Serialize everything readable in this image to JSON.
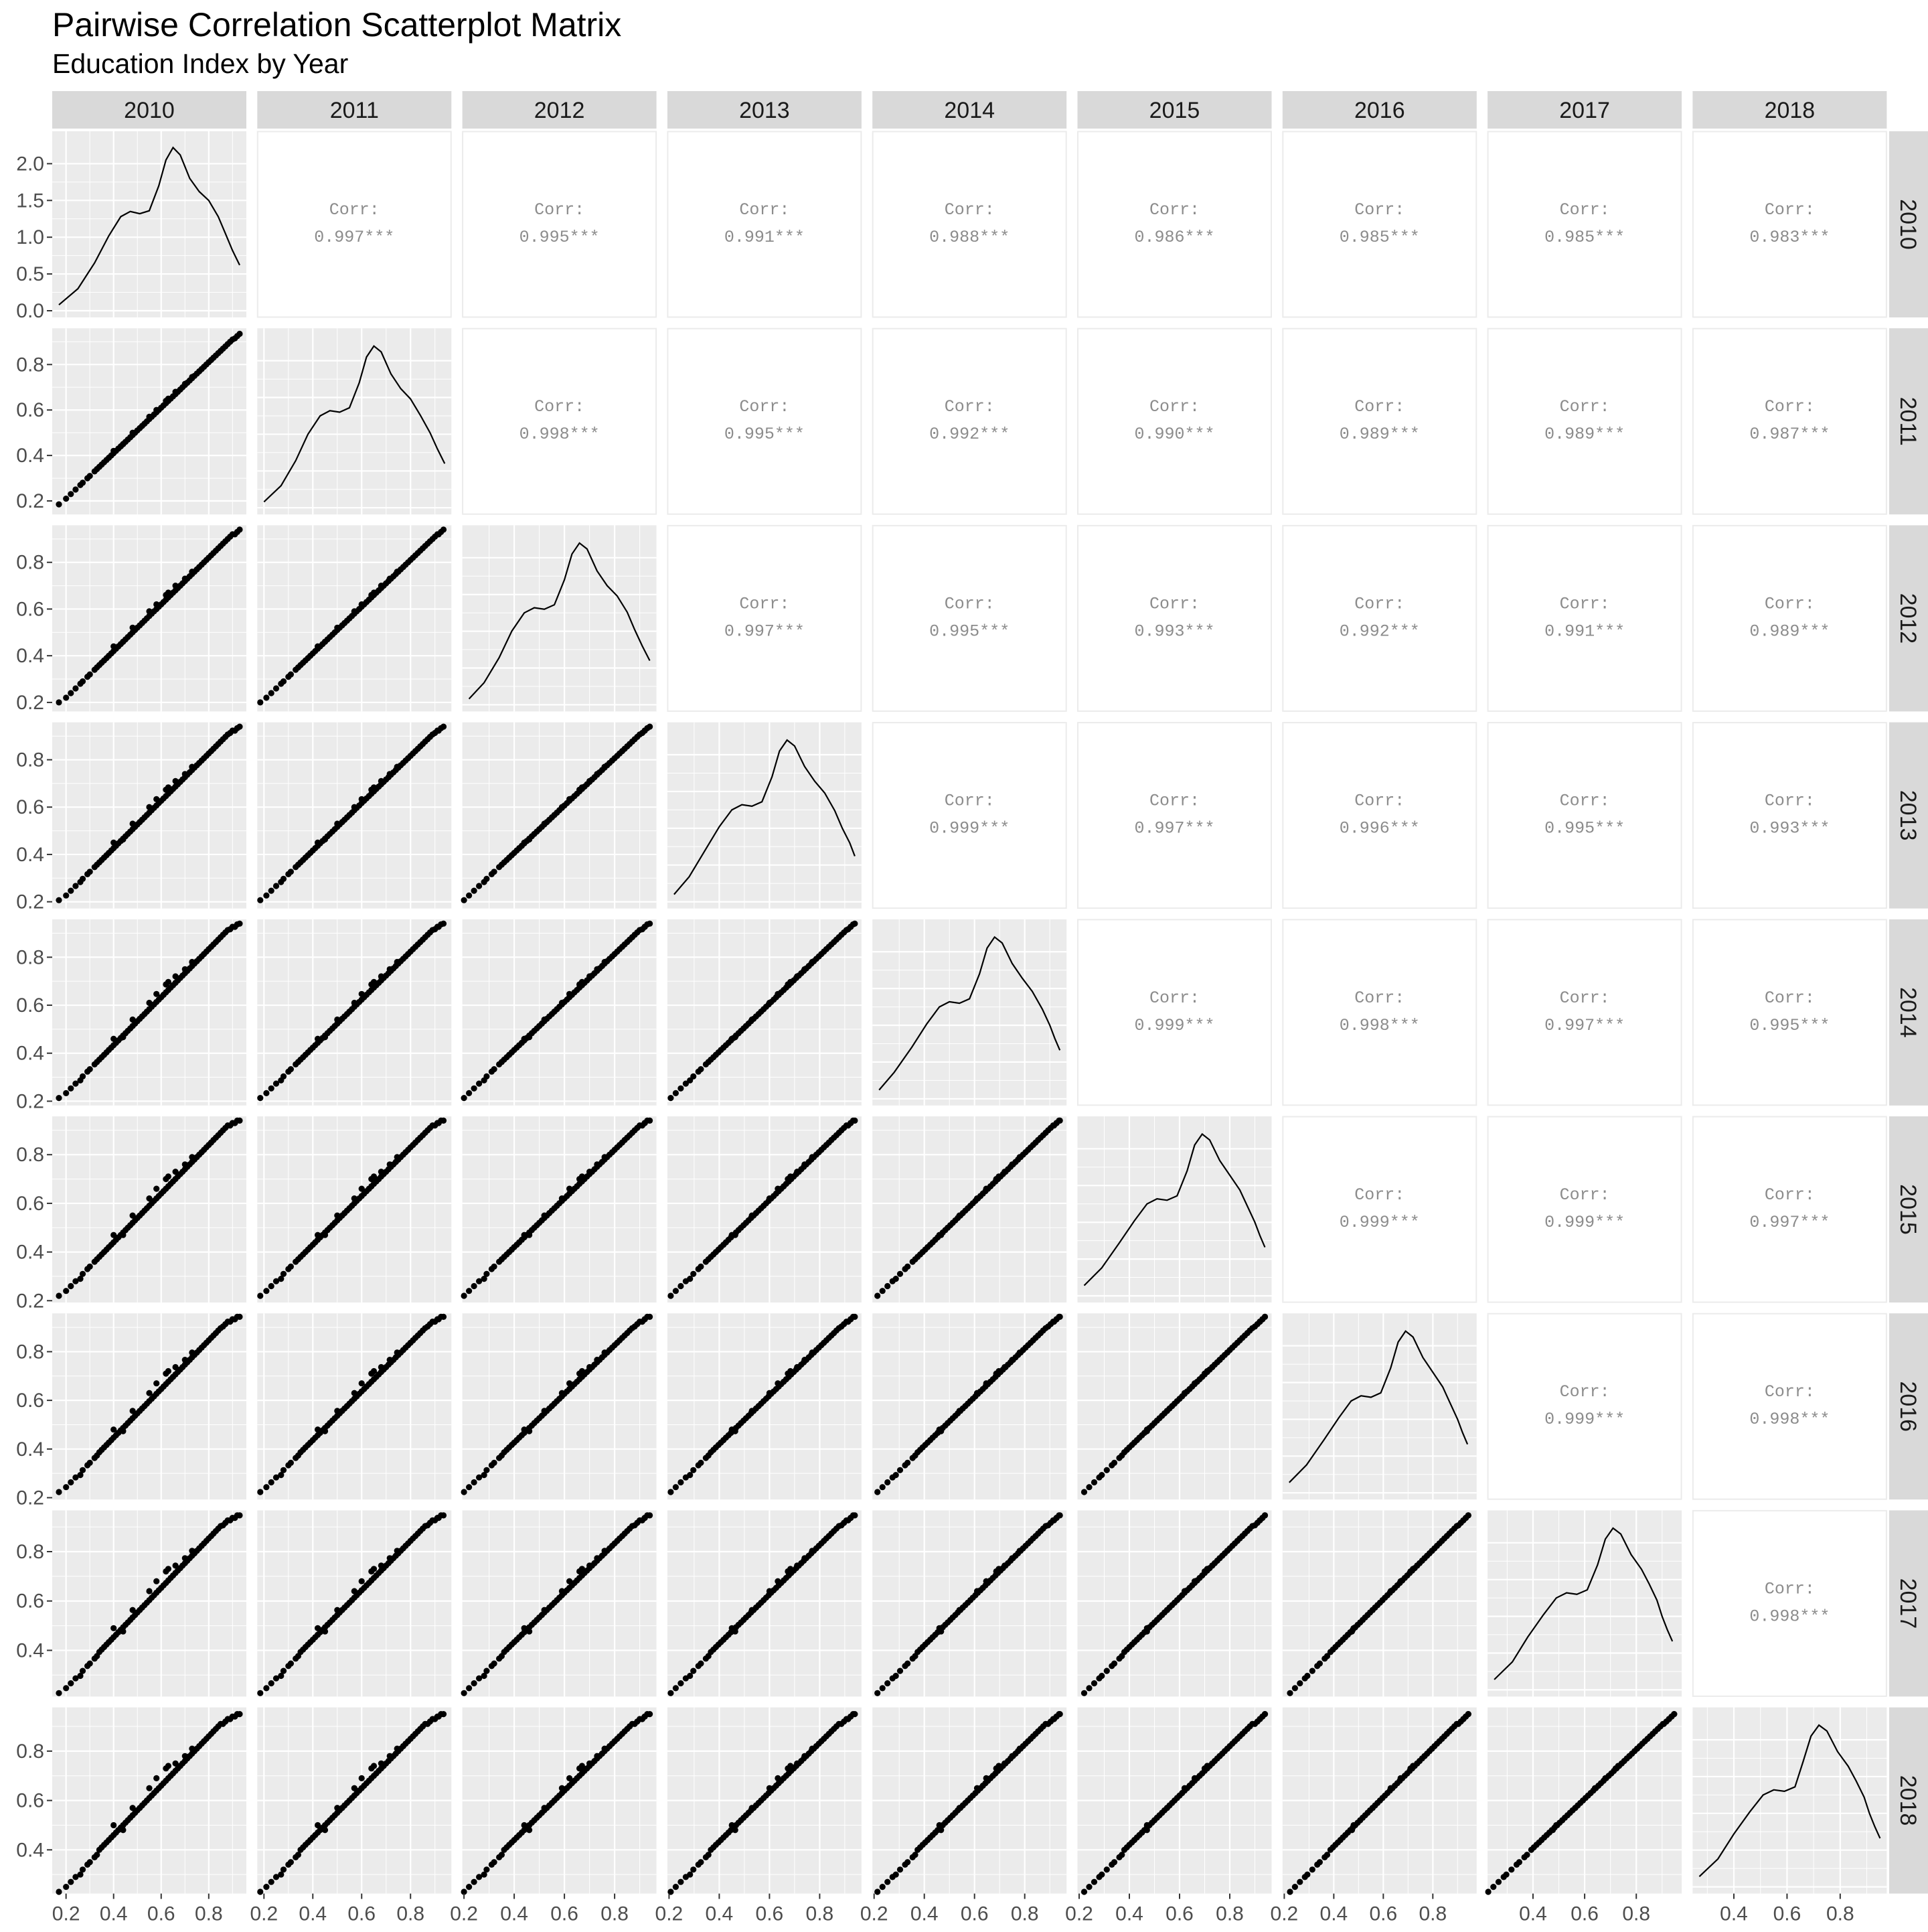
{
  "chart_data": {
    "type": "scatter",
    "title": "Pairwise Correlation Scatterplot Matrix",
    "subtitle": "Education Index by Year",
    "variables": [
      "2010",
      "2011",
      "2012",
      "2013",
      "2014",
      "2015",
      "2016",
      "2017",
      "2018"
    ],
    "upper_panels": {
      "label": "Corr:",
      "significance": "***",
      "correlations": [
        [
          "",
          "0.997",
          "0.995",
          "0.991",
          "0.988",
          "0.986",
          "0.985",
          "0.985",
          "0.983"
        ],
        [
          "",
          "",
          "0.998",
          "0.995",
          "0.992",
          "0.990",
          "0.989",
          "0.989",
          "0.987"
        ],
        [
          "",
          "",
          "",
          "0.997",
          "0.995",
          "0.993",
          "0.992",
          "0.991",
          "0.989"
        ],
        [
          "",
          "",
          "",
          "",
          "0.999",
          "0.997",
          "0.996",
          "0.995",
          "0.993"
        ],
        [
          "",
          "",
          "",
          "",
          "",
          "0.999",
          "0.998",
          "0.997",
          "0.995"
        ],
        [
          "",
          "",
          "",
          "",
          "",
          "",
          "0.999",
          "0.999",
          "0.997"
        ],
        [
          "",
          "",
          "",
          "",
          "",
          "",
          "",
          "0.999",
          "0.998"
        ],
        [
          "",
          "",
          "",
          "",
          "",
          "",
          "",
          "",
          "0.998"
        ],
        [
          "",
          "",
          "",
          "",
          "",
          "",
          "",
          "",
          ""
        ]
      ]
    },
    "diagonal": {
      "type": "density",
      "y_ticks_first_panel": [
        "0.0",
        "0.5",
        "1.0",
        "1.5",
        "2.0"
      ],
      "ylim_first_panel": [
        0,
        2.35
      ],
      "curves": [
        {
          "year": "2010",
          "x": [
            0.17,
            0.25,
            0.32,
            0.38,
            0.43,
            0.47,
            0.51,
            0.55,
            0.59,
            0.62,
            0.65,
            0.68,
            0.72,
            0.76,
            0.8,
            0.84,
            0.87,
            0.9,
            0.93
          ],
          "y": [
            0.08,
            0.3,
            0.65,
            1.02,
            1.28,
            1.35,
            1.32,
            1.36,
            1.7,
            2.05,
            2.22,
            2.12,
            1.8,
            1.62,
            1.5,
            1.28,
            1.05,
            0.82,
            0.62
          ]
        },
        {
          "year": "2011",
          "x": [
            0.2,
            0.27,
            0.33,
            0.38,
            0.43,
            0.47,
            0.51,
            0.55,
            0.59,
            0.62,
            0.65,
            0.68,
            0.72,
            0.76,
            0.8,
            0.84,
            0.88,
            0.91,
            0.94
          ],
          "y": [
            0.08,
            0.3,
            0.64,
            1.0,
            1.25,
            1.32,
            1.3,
            1.36,
            1.7,
            2.05,
            2.2,
            2.12,
            1.82,
            1.62,
            1.48,
            1.26,
            1.02,
            0.8,
            0.6
          ]
        },
        {
          "year": "2012",
          "x": [
            0.22,
            0.28,
            0.34,
            0.39,
            0.44,
            0.48,
            0.52,
            0.56,
            0.6,
            0.63,
            0.66,
            0.69,
            0.73,
            0.77,
            0.81,
            0.85,
            0.88,
            0.91,
            0.94
          ],
          "y": [
            0.08,
            0.3,
            0.64,
            1.0,
            1.25,
            1.32,
            1.3,
            1.36,
            1.7,
            2.05,
            2.2,
            2.12,
            1.82,
            1.62,
            1.48,
            1.26,
            1.02,
            0.8,
            0.6
          ]
        },
        {
          "year": "2013",
          "x": [
            0.22,
            0.28,
            0.34,
            0.4,
            0.45,
            0.49,
            0.53,
            0.57,
            0.61,
            0.64,
            0.67,
            0.7,
            0.74,
            0.78,
            0.82,
            0.86,
            0.89,
            0.92,
            0.94
          ],
          "y": [
            0.1,
            0.34,
            0.68,
            1.02,
            1.25,
            1.32,
            1.3,
            1.36,
            1.7,
            2.05,
            2.2,
            2.12,
            1.84,
            1.64,
            1.48,
            1.24,
            1.0,
            0.8,
            0.62
          ]
        },
        {
          "year": "2014",
          "x": [
            0.22,
            0.28,
            0.35,
            0.41,
            0.46,
            0.5,
            0.54,
            0.58,
            0.62,
            0.65,
            0.68,
            0.71,
            0.75,
            0.79,
            0.83,
            0.87,
            0.9,
            0.92,
            0.94
          ],
          "y": [
            0.12,
            0.36,
            0.7,
            1.02,
            1.25,
            1.32,
            1.3,
            1.36,
            1.7,
            2.05,
            2.2,
            2.12,
            1.84,
            1.64,
            1.46,
            1.22,
            1.0,
            0.82,
            0.66
          ]
        },
        {
          "year": "2015",
          "x": [
            0.22,
            0.29,
            0.36,
            0.42,
            0.47,
            0.51,
            0.55,
            0.59,
            0.63,
            0.66,
            0.69,
            0.72,
            0.76,
            0.8,
            0.84,
            0.87,
            0.9,
            0.92,
            0.94
          ],
          "y": [
            0.14,
            0.38,
            0.72,
            1.02,
            1.25,
            1.32,
            1.3,
            1.36,
            1.7,
            2.05,
            2.2,
            2.12,
            1.84,
            1.64,
            1.44,
            1.22,
            1.0,
            0.82,
            0.66
          ]
        },
        {
          "year": "2016",
          "x": [
            0.22,
            0.29,
            0.36,
            0.42,
            0.47,
            0.51,
            0.55,
            0.59,
            0.63,
            0.66,
            0.69,
            0.72,
            0.76,
            0.8,
            0.84,
            0.87,
            0.9,
            0.92,
            0.94
          ],
          "y": [
            0.14,
            0.38,
            0.72,
            1.02,
            1.25,
            1.32,
            1.3,
            1.36,
            1.7,
            2.05,
            2.2,
            2.12,
            1.84,
            1.64,
            1.44,
            1.22,
            1.0,
            0.82,
            0.66
          ]
        },
        {
          "year": "2017",
          "x": [
            0.25,
            0.32,
            0.38,
            0.44,
            0.49,
            0.53,
            0.57,
            0.61,
            0.65,
            0.68,
            0.71,
            0.74,
            0.78,
            0.82,
            0.85,
            0.88,
            0.9,
            0.92,
            0.94
          ],
          "y": [
            0.14,
            0.38,
            0.72,
            1.02,
            1.25,
            1.32,
            1.3,
            1.36,
            1.7,
            2.05,
            2.2,
            2.12,
            1.84,
            1.64,
            1.44,
            1.22,
            1.0,
            0.82,
            0.66
          ]
        },
        {
          "year": "2018",
          "x": [
            0.27,
            0.34,
            0.4,
            0.46,
            0.51,
            0.55,
            0.59,
            0.63,
            0.66,
            0.69,
            0.72,
            0.75,
            0.79,
            0.83,
            0.86,
            0.89,
            0.91,
            0.93,
            0.95
          ],
          "y": [
            0.14,
            0.38,
            0.72,
            1.02,
            1.25,
            1.32,
            1.3,
            1.36,
            1.7,
            2.05,
            2.2,
            2.12,
            1.84,
            1.64,
            1.44,
            1.22,
            1.0,
            0.82,
            0.66
          ]
        }
      ]
    },
    "lower_panels": {
      "type": "scatter",
      "x_ranges": [
        [
          0.17,
          0.93
        ],
        [
          0.2,
          0.94
        ],
        [
          0.22,
          0.94
        ],
        [
          0.22,
          0.94
        ],
        [
          0.22,
          0.94
        ],
        [
          0.22,
          0.94
        ],
        [
          0.22,
          0.95
        ],
        [
          0.25,
          0.95
        ],
        [
          0.27,
          0.95
        ]
      ],
      "y_ranges": [
        [
          0.17,
          0.93
        ],
        [
          0.17,
          0.93
        ],
        [
          0.19,
          0.93
        ],
        [
          0.2,
          0.93
        ],
        [
          0.21,
          0.93
        ],
        [
          0.22,
          0.93
        ],
        [
          0.22,
          0.93
        ],
        [
          0.24,
          0.94
        ],
        [
          0.25,
          0.95
        ]
      ],
      "x_tick_values": [
        0.2,
        0.4,
        0.6,
        0.8
      ],
      "x_tick_labels": [
        "0.2",
        "0.4",
        "0.6",
        "0.8"
      ],
      "y_tick_values": [
        0.2,
        0.4,
        0.6,
        0.8
      ],
      "y_tick_labels": [
        "0.2",
        "0.4",
        "0.6",
        "0.8"
      ],
      "bottom_axis_labels_by_column": [
        [
          "0.2",
          "0.4",
          "0.6",
          "0.8"
        ],
        [
          "0.2",
          "0.4",
          "0.6",
          "0.8"
        ],
        [
          "0.2",
          "0.4",
          "0.6",
          "0.8"
        ],
        [
          "0.2",
          "0.4",
          "0.6",
          "0.8"
        ],
        [
          "0.2",
          "0.4",
          "0.6",
          "0.8"
        ],
        [
          "0.2",
          "0.4",
          "0.6",
          "0.8"
        ],
        [
          "0.2",
          "0.4",
          "0.6",
          "0.8"
        ],
        [
          "0.4",
          "0.6",
          "0.8"
        ],
        [
          "0.4",
          "0.6",
          "0.8"
        ]
      ],
      "left_axis_labels_by_row": [
        [
          "0.0",
          "0.5",
          "1.0",
          "1.5",
          "2.0"
        ],
        [
          "0.2",
          "0.4",
          "0.6",
          "0.8"
        ],
        [
          "0.2",
          "0.4",
          "0.6",
          "0.8"
        ],
        [
          "0.2",
          "0.4",
          "0.6",
          "0.8"
        ],
        [
          "0.2",
          "0.4",
          "0.6",
          "0.8"
        ],
        [
          "0.2",
          "0.4",
          "0.6",
          "0.8"
        ],
        [
          "0.2",
          "0.4",
          "0.6",
          "0.8"
        ],
        [
          "0.4",
          "0.6",
          "0.8"
        ],
        [
          "0.4",
          "0.6",
          "0.8"
        ]
      ],
      "points": [
        [
          0.17,
          0.2,
          0.22,
          0.23
        ],
        [
          0.2,
          0.22,
          0.24,
          0.25
        ],
        [
          0.22,
          0.24,
          0.26,
          0.27
        ],
        [
          0.24,
          0.26,
          0.28,
          0.29
        ],
        [
          0.26,
          0.28,
          0.29,
          0.3
        ],
        [
          0.27,
          0.29,
          0.31,
          0.32
        ],
        [
          0.29,
          0.31,
          0.33,
          0.34
        ],
        [
          0.3,
          0.32,
          0.34,
          0.35
        ],
        [
          0.32,
          0.34,
          0.36,
          0.37
        ],
        [
          0.33,
          0.35,
          0.37,
          0.38
        ],
        [
          0.34,
          0.36,
          0.38,
          0.4
        ],
        [
          0.35,
          0.37,
          0.39,
          0.41
        ],
        [
          0.36,
          0.38,
          0.4,
          0.42
        ],
        [
          0.37,
          0.39,
          0.41,
          0.43
        ],
        [
          0.38,
          0.4,
          0.42,
          0.44
        ],
        [
          0.39,
          0.41,
          0.43,
          0.45
        ],
        [
          0.4,
          0.42,
          0.44,
          0.46
        ],
        [
          0.41,
          0.43,
          0.45,
          0.47
        ],
        [
          0.42,
          0.44,
          0.46,
          0.48
        ],
        [
          0.43,
          0.45,
          0.47,
          0.49
        ],
        [
          0.44,
          0.46,
          0.48,
          0.5
        ],
        [
          0.45,
          0.47,
          0.49,
          0.51
        ],
        [
          0.46,
          0.48,
          0.5,
          0.52
        ],
        [
          0.47,
          0.49,
          0.51,
          0.53
        ],
        [
          0.48,
          0.5,
          0.52,
          0.54
        ],
        [
          0.49,
          0.51,
          0.53,
          0.55
        ],
        [
          0.5,
          0.52,
          0.54,
          0.56
        ],
        [
          0.51,
          0.53,
          0.55,
          0.57
        ],
        [
          0.52,
          0.54,
          0.56,
          0.58
        ],
        [
          0.53,
          0.55,
          0.57,
          0.59
        ],
        [
          0.54,
          0.56,
          0.58,
          0.6
        ],
        [
          0.55,
          0.57,
          0.59,
          0.61
        ],
        [
          0.56,
          0.58,
          0.6,
          0.62
        ],
        [
          0.57,
          0.59,
          0.61,
          0.63
        ],
        [
          0.58,
          0.6,
          0.62,
          0.64
        ],
        [
          0.59,
          0.61,
          0.63,
          0.65
        ],
        [
          0.6,
          0.62,
          0.64,
          0.66
        ],
        [
          0.61,
          0.63,
          0.65,
          0.67
        ],
        [
          0.62,
          0.64,
          0.66,
          0.68
        ],
        [
          0.63,
          0.65,
          0.67,
          0.69
        ],
        [
          0.64,
          0.66,
          0.68,
          0.7
        ],
        [
          0.65,
          0.67,
          0.69,
          0.71
        ],
        [
          0.66,
          0.68,
          0.7,
          0.72
        ],
        [
          0.67,
          0.69,
          0.71,
          0.73
        ],
        [
          0.68,
          0.7,
          0.72,
          0.74
        ],
        [
          0.69,
          0.71,
          0.73,
          0.75
        ],
        [
          0.7,
          0.72,
          0.74,
          0.76
        ],
        [
          0.71,
          0.73,
          0.75,
          0.77
        ],
        [
          0.72,
          0.74,
          0.76,
          0.78
        ],
        [
          0.73,
          0.75,
          0.77,
          0.79
        ],
        [
          0.74,
          0.76,
          0.78,
          0.8
        ],
        [
          0.75,
          0.77,
          0.79,
          0.81
        ],
        [
          0.76,
          0.78,
          0.8,
          0.82
        ],
        [
          0.77,
          0.79,
          0.81,
          0.83
        ],
        [
          0.78,
          0.8,
          0.82,
          0.84
        ],
        [
          0.79,
          0.81,
          0.83,
          0.85
        ],
        [
          0.8,
          0.82,
          0.84,
          0.86
        ],
        [
          0.81,
          0.83,
          0.85,
          0.87
        ],
        [
          0.82,
          0.84,
          0.86,
          0.88
        ],
        [
          0.83,
          0.85,
          0.87,
          0.89
        ],
        [
          0.84,
          0.86,
          0.88,
          0.9
        ],
        [
          0.85,
          0.87,
          0.89,
          0.91
        ],
        [
          0.86,
          0.88,
          0.9,
          0.91
        ],
        [
          0.87,
          0.89,
          0.91,
          0.92
        ],
        [
          0.88,
          0.9,
          0.92,
          0.93
        ],
        [
          0.89,
          0.91,
          0.92,
          0.93
        ],
        [
          0.9,
          0.92,
          0.93,
          0.94
        ],
        [
          0.91,
          0.92,
          0.93,
          0.94
        ],
        [
          0.92,
          0.93,
          0.94,
          0.95
        ],
        [
          0.93,
          0.94,
          0.94,
          0.95
        ],
        [
          0.44,
          0.46,
          0.47,
          0.48
        ],
        [
          0.62,
          0.66,
          0.7,
          0.73
        ],
        [
          0.48,
          0.52,
          0.55,
          0.57
        ],
        [
          0.58,
          0.62,
          0.66,
          0.69
        ],
        [
          0.66,
          0.7,
          0.73,
          0.75
        ],
        [
          0.55,
          0.59,
          0.62,
          0.65
        ],
        [
          0.7,
          0.73,
          0.76,
          0.78
        ],
        [
          0.4,
          0.44,
          0.47,
          0.5
        ],
        [
          0.63,
          0.67,
          0.71,
          0.74
        ],
        [
          0.73,
          0.76,
          0.79,
          0.81
        ]
      ],
      "points_note_years": [
        "2010",
        "2012",
        "2015",
        "2018"
      ]
    }
  }
}
